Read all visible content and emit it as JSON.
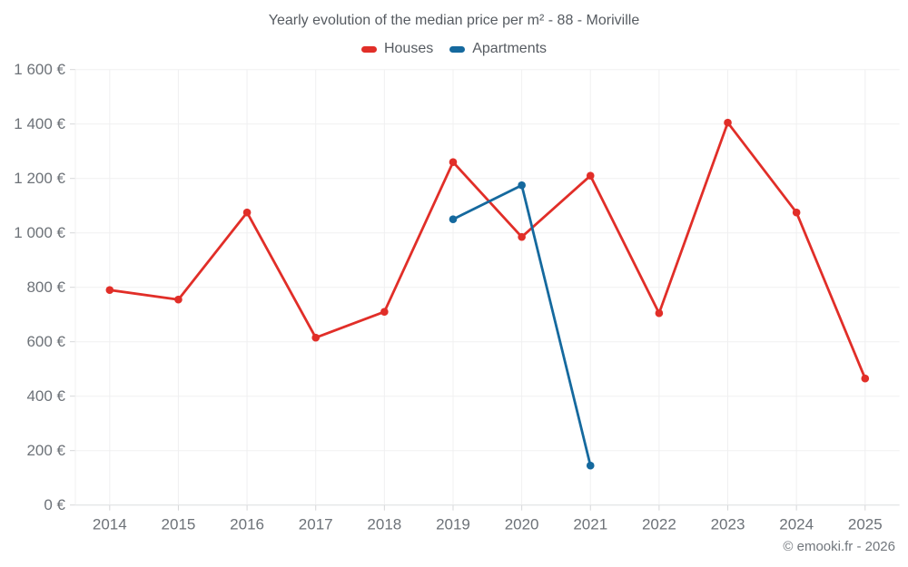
{
  "footer": "© emooki.fr - 2026",
  "colors": {
    "houses": "#e12e28",
    "apartments": "#15699e",
    "gridline": "#f0f0f1",
    "axis_line": "#dcdddf",
    "tick": "#d6d7d9",
    "axis_label": "#6d7278",
    "title_text": "#565b61"
  },
  "chart_data": {
    "type": "line",
    "title": "Yearly evolution of the median price per m² - 88 - Moriville",
    "categories": [
      "2014",
      "2015",
      "2016",
      "2017",
      "2018",
      "2019",
      "2020",
      "2021",
      "2022",
      "2023",
      "2024",
      "2025"
    ],
    "series": [
      {
        "name": "Houses",
        "color": "#e12e28",
        "values": [
          790,
          755,
          1075,
          615,
          710,
          1260,
          985,
          1210,
          705,
          1405,
          1075,
          465
        ]
      },
      {
        "name": "Apartments",
        "color": "#15699e",
        "values": [
          null,
          null,
          null,
          null,
          null,
          1050,
          1175,
          145,
          null,
          null,
          null,
          null
        ]
      }
    ],
    "ylabel_suffix": " €",
    "ylim": [
      0,
      1600
    ],
    "ytick_step": 200,
    "ytick_labels": [
      "0 €",
      "200 €",
      "400 €",
      "600 €",
      "800 €",
      "1 000 €",
      "1 200 €",
      "1 400 €",
      "1 600 €"
    ],
    "grid": true,
    "legend_position": "top",
    "marker": "circle"
  }
}
